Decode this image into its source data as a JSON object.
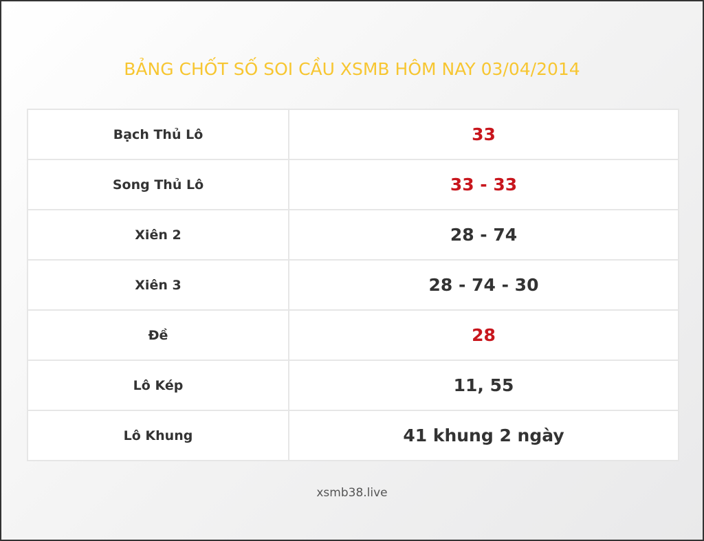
{
  "title": "BẢNG CHỐT SỐ SOI CẦU XSMB HÔM NAY 03/04/2014",
  "colors": {
    "title": "#f7c631",
    "highlight": "#c8161d",
    "text": "#333333"
  },
  "rows": [
    {
      "label": "Bạch Thủ Lô",
      "value": "33",
      "highlight": true
    },
    {
      "label": "Song Thủ Lô",
      "value": "33 - 33",
      "highlight": true
    },
    {
      "label": "Xiên 2",
      "value": "28 - 74",
      "highlight": false
    },
    {
      "label": "Xiên 3",
      "value": "28 - 74 - 30",
      "highlight": false
    },
    {
      "label": "Đề",
      "value": "28",
      "highlight": true
    },
    {
      "label": "Lô Kép",
      "value": "11, 55",
      "highlight": false
    },
    {
      "label": "Lô Khung",
      "value": "41 khung 2 ngày",
      "highlight": false
    }
  ],
  "footer": "xsmb38.live"
}
